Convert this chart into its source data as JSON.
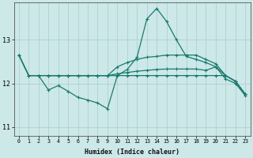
{
  "xlabel": "Humidex (Indice chaleur)",
  "bg_color": "#cce8e8",
  "grid_color": "#aacccc",
  "line_color": "#1a7a6e",
  "x_ticks": [
    0,
    1,
    2,
    3,
    4,
    5,
    6,
    7,
    8,
    9,
    10,
    11,
    12,
    13,
    14,
    15,
    16,
    17,
    18,
    19,
    20,
    21,
    22,
    23
  ],
  "ylim": [
    10.8,
    13.85
  ],
  "yticks": [
    11,
    12,
    13
  ],
  "line1_x": [
    0,
    1,
    2,
    3,
    4,
    5,
    6,
    7,
    8,
    9,
    10,
    11,
    12,
    13,
    14,
    15,
    16,
    17,
    18,
    19,
    20,
    21,
    22,
    23
  ],
  "line1_y": [
    12.65,
    12.18,
    12.18,
    11.85,
    11.95,
    11.82,
    11.68,
    11.62,
    11.55,
    11.42,
    12.18,
    12.32,
    12.6,
    13.48,
    13.72,
    13.42,
    13.0,
    12.62,
    12.55,
    12.48,
    12.38,
    12.1,
    12.0,
    11.72
  ],
  "line2_x": [
    0,
    1,
    2,
    3,
    4,
    5,
    6,
    7,
    8,
    9,
    10,
    11,
    12,
    13,
    14,
    15,
    16,
    17,
    18,
    19,
    20,
    21,
    22,
    23
  ],
  "line2_y": [
    12.65,
    12.18,
    12.18,
    12.18,
    12.18,
    12.18,
    12.18,
    12.18,
    12.18,
    12.18,
    12.38,
    12.48,
    12.55,
    12.6,
    12.62,
    12.65,
    12.65,
    12.65,
    12.65,
    12.55,
    12.45,
    12.18,
    12.05,
    11.75
  ],
  "line3_x": [
    0,
    1,
    2,
    3,
    4,
    5,
    6,
    7,
    8,
    9,
    10,
    11,
    12,
    13,
    14,
    15,
    16,
    17,
    18,
    19,
    20,
    21,
    22,
    23
  ],
  "line3_y": [
    12.65,
    12.18,
    12.18,
    12.18,
    12.18,
    12.18,
    12.18,
    12.18,
    12.18,
    12.18,
    12.22,
    12.25,
    12.28,
    12.3,
    12.32,
    12.33,
    12.33,
    12.33,
    12.33,
    12.3,
    12.38,
    12.18,
    12.05,
    11.75
  ],
  "line4_x": [
    3,
    4,
    5,
    6,
    7,
    8,
    9,
    10,
    11,
    12,
    13,
    14,
    15,
    16,
    17,
    18,
    19,
    20,
    21,
    22,
    23
  ],
  "line4_y": [
    12.18,
    12.18,
    12.18,
    12.18,
    12.18,
    12.18,
    12.18,
    12.18,
    12.18,
    12.18,
    12.18,
    12.18,
    12.18,
    12.18,
    12.18,
    12.18,
    12.18,
    12.18,
    12.18,
    12.05,
    11.75
  ]
}
